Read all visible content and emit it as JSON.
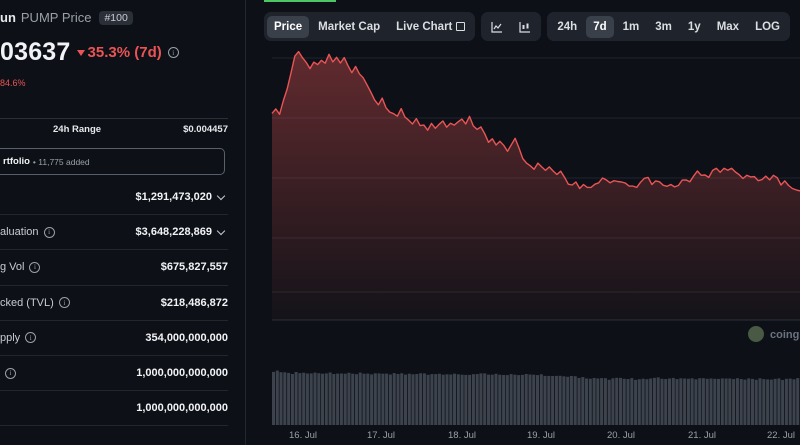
{
  "coin": {
    "name": "un",
    "symbol_label": "PUMP Price",
    "rank": "#100",
    "price": "03637",
    "change_7d": "35.3% (7d)",
    "sub_change": "84.6%"
  },
  "range": {
    "label": "24h Range",
    "value": "$0.004457"
  },
  "portfolio": {
    "label": "rtfolio",
    "count": "• 11,775 added"
  },
  "stats": [
    {
      "label": "",
      "value": "$1,291,473,020",
      "info": false,
      "dropdown": true
    },
    {
      "label": "aluation",
      "value": "$3,648,228,869",
      "info": true,
      "dropdown": true
    },
    {
      "label": "g Vol",
      "value": "$675,827,557",
      "info": true,
      "dropdown": false
    },
    {
      "label": "cked (TVL)",
      "value": "$218,486,872",
      "info": true,
      "dropdown": false
    },
    {
      "label": "pply",
      "value": "354,000,000,000",
      "info": true,
      "dropdown": false
    },
    {
      "label": "",
      "value": "1,000,000,000,000",
      "info": true,
      "dropdown": false
    },
    {
      "label": "",
      "value": "1,000,000,000,000",
      "info": false,
      "dropdown": false
    }
  ],
  "toolbar": {
    "views": [
      "Price",
      "Market Cap",
      "Live Chart"
    ],
    "active_view": "Price",
    "chart_types": [
      "line-chart-icon",
      "candlestick-icon"
    ],
    "ranges": [
      "24h",
      "7d",
      "1m",
      "3m",
      "1y",
      "Max",
      "LOG"
    ],
    "active_range": "7d"
  },
  "watermark": "coing",
  "colors": {
    "line": "#ea5455",
    "volume": "#3d434d",
    "accent": "#4cc764"
  },
  "chart_data": {
    "type": "area",
    "x_labels": [
      "16. Jul",
      "17. Jul",
      "18. Jul",
      "19. Jul",
      "20. Jul",
      "21. Jul",
      "22. Jul"
    ],
    "price_series": [
      76.5,
      78.2,
      76.2,
      81.3,
      85.6,
      91.5,
      97.7,
      99.4,
      97.2,
      95.4,
      93.1,
      95.5,
      94.6,
      96.2,
      95.1,
      98.4,
      95.6,
      97.3,
      95.2,
      97.2,
      94.2,
      91.6,
      93.9,
      91.2,
      89.7,
      87.1,
      84.4,
      81.5,
      79.7,
      82.2,
      78.6,
      77.0,
      76.4,
      75.5,
      78.3,
      75.2,
      74.0,
      72.6,
      74.6,
      72.0,
      72.2,
      70.3,
      72.8,
      71.0,
      72.5,
      73.7,
      71.4,
      72.9,
      72.2,
      73.4,
      74.4,
      72.6,
      75.4,
      71.9,
      70.6,
      71.5,
      69.0,
      65.8,
      67.1,
      64.8,
      66.2,
      64.7,
      62.5,
      64.9,
      67.3,
      63.8,
      59.8,
      58.1,
      57.1,
      55.8,
      58.1,
      56.7,
      55.4,
      56.7,
      55.2,
      53.9,
      55.1,
      52.9,
      50.3,
      50.0,
      51.1,
      48.7,
      50.2,
      49.1,
      49.1,
      50.3,
      50.8,
      52.6,
      51.9,
      50.8,
      51.6,
      51.3,
      51.1,
      50.7,
      49.6,
      49.6,
      49.1,
      51.0,
      52.5,
      52.8,
      50.2,
      51.5,
      51.2,
      49.9,
      49.5,
      50.2,
      49.3,
      49.8,
      51.8,
      51.9,
      51.2,
      53.3,
      55.2,
      53.6,
      53.7,
      52.8,
      55.4,
      56.2,
      54.7,
      56.2,
      55.5,
      56.2,
      54.8,
      53.8,
      52.4,
      53.6,
      53.0,
      53.1,
      51.6,
      52.0,
      53.3,
      51.9,
      53.6,
      52.7,
      50.0,
      51.5,
      49.8,
      48.7,
      48.2,
      47.8
    ],
    "volume_series": [
      72.0,
      73.8,
      71.6,
      71.4,
      70.7,
      69.2,
      71.8,
      70.4,
      70.9,
      69.8,
      69.9,
      71.0,
      70.2,
      69.6,
      69.9,
      71.2,
      69.2,
      69.7,
      69.8,
      69.5,
      70.8,
      69.5,
      68.9,
      71.0,
      69.6,
      69.7,
      68.6,
      70.1,
      69.9,
      69.5,
      69.7,
      68.5,
      70.4,
      69.1,
      70.1,
      68.3,
      69.5,
      68.8,
      69.1,
      70.1,
      69.9,
      68.1,
      69.0,
      69.0,
      69.4,
      68.2,
      68.8,
      68.5,
      69.6,
      68.7,
      68.2,
      68.0,
      67.9,
      68.9,
      69.0,
      69.9,
      70.0,
      68.4,
      68.2,
      69.4,
      68.2,
      67.8,
      67.7,
      69.0,
      68.2,
      67.6,
      67.9,
      69.1,
      68.5,
      68.2,
      67.6,
      68.7,
      66.6,
      66.6,
      66.4,
      66.6,
      66.7,
      66.1,
      65.4,
      66.4,
      66.2,
      63.8,
      64.9,
      63.0,
      62.8,
      63.7,
      63.1,
      63.6,
      63.5,
      61.3,
      63.3,
      64.0,
      63.8,
      62.6,
      62.4,
      63.6,
      61.1,
      62.1,
      62.8,
      62.1,
      63.0,
      63.8,
      64.6,
      62.7,
      62.4,
      63.0,
      63.8,
      62.2,
      63.3,
      63.0,
      62.8,
      63.3,
      61.9,
      63.4,
      63.5,
      62.7,
      63.1,
      62.6,
      62.5,
      63.2,
      63.0,
      63.0,
      62.3,
      63.5,
      62.4,
      61.6,
      63.2,
      62.5,
      61.3,
      63.3,
      62.2,
      61.8,
      61.6,
      62.5,
      63.2,
      61.0,
      62.6,
      62.9,
      62.0,
      63.6
    ]
  }
}
